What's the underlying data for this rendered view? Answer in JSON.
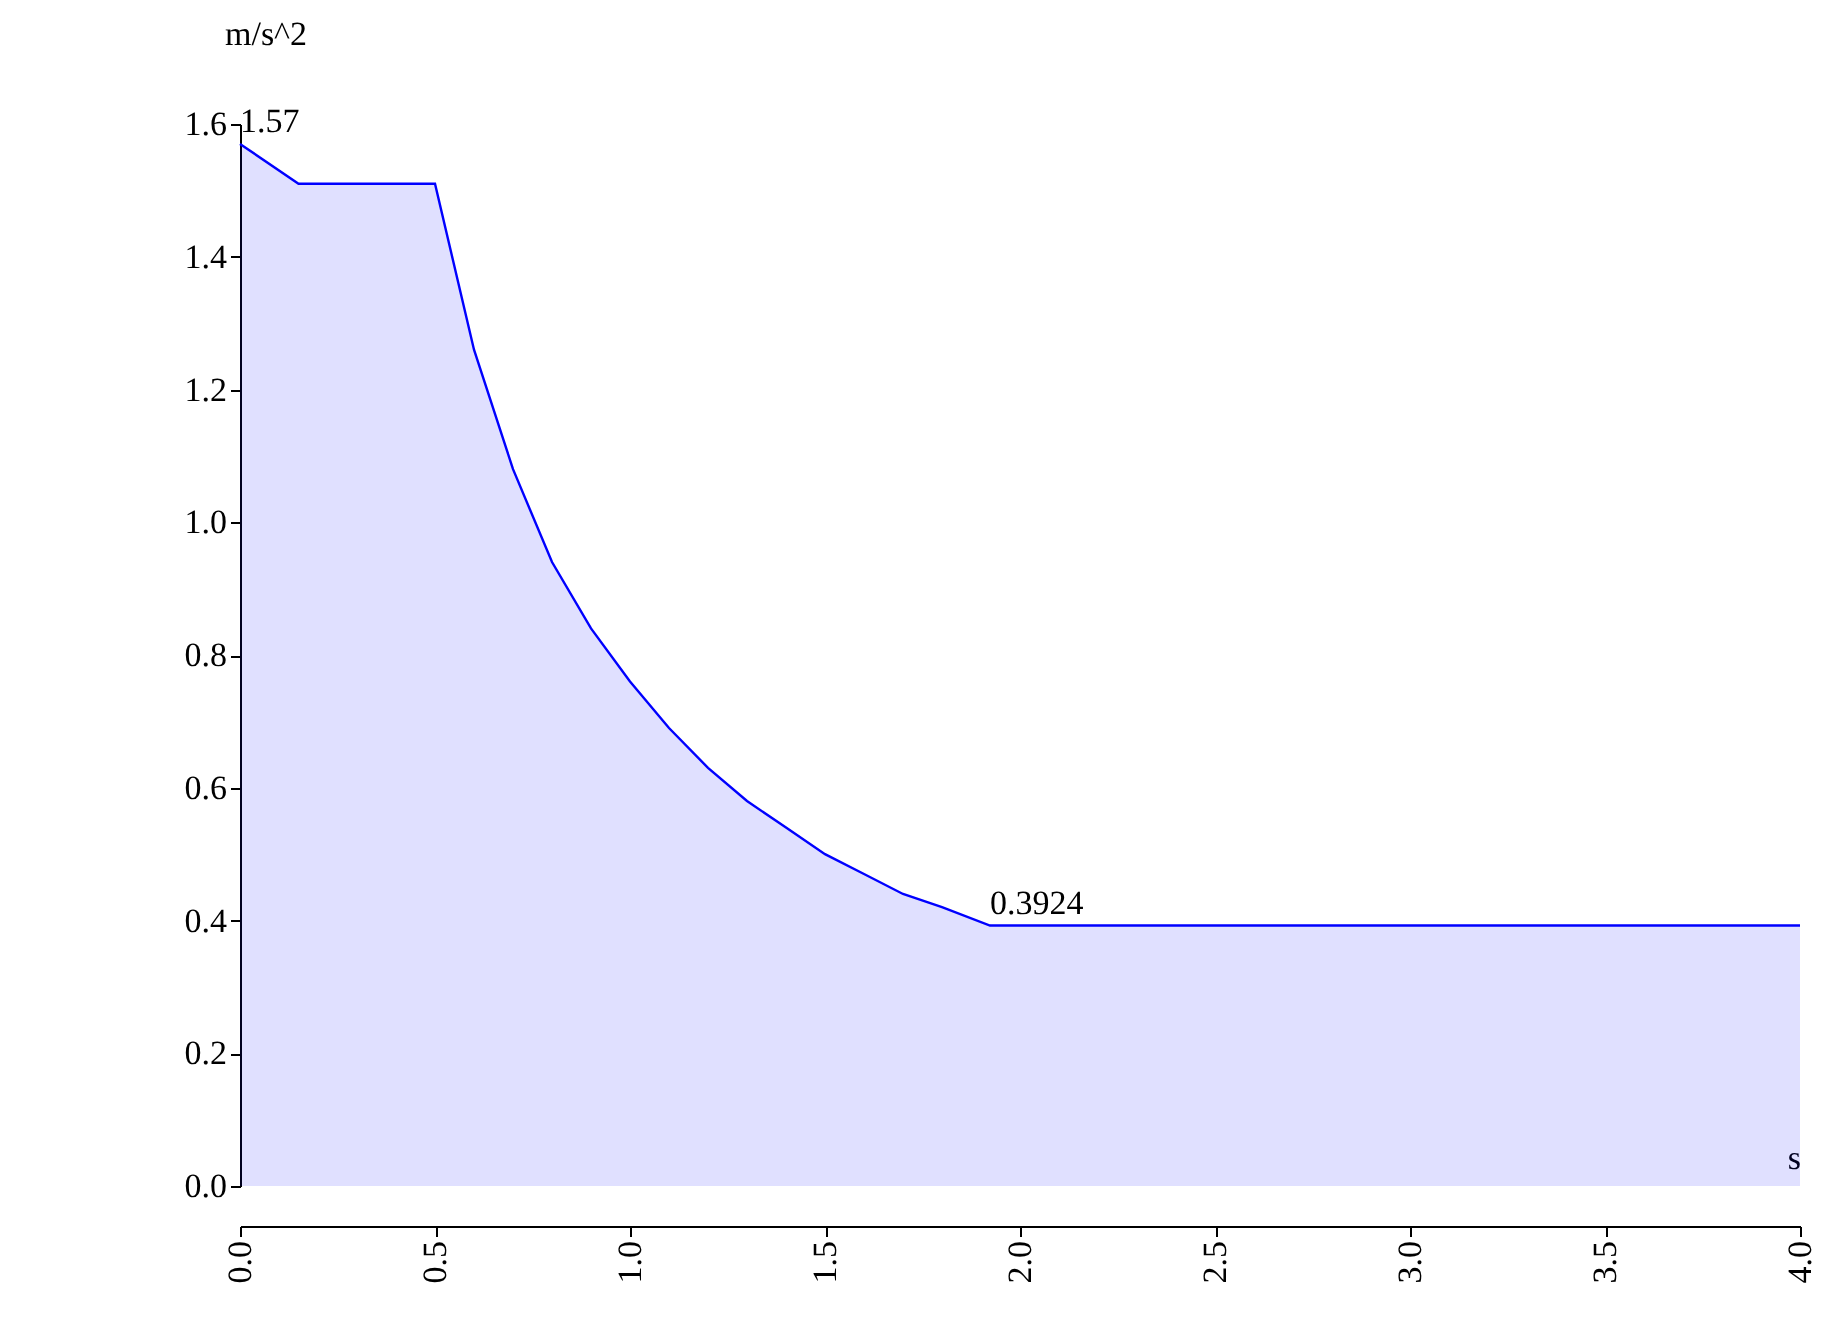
{
  "chart_data": {
    "type": "area",
    "ylabel": "m/s^2",
    "xlabel": "s",
    "x": [
      0,
      0.15,
      0.5,
      0.6,
      0.7,
      0.8,
      0.9,
      1.0,
      1.1,
      1.2,
      1.3,
      1.4,
      1.5,
      1.6,
      1.7,
      1.8,
      1.923,
      4.0
    ],
    "series": [
      {
        "color": "#0000ff",
        "values": [
          1.57,
          1.51,
          1.51,
          1.26,
          1.08,
          0.94,
          0.84,
          0.76,
          0.69,
          0.63,
          0.58,
          0.54,
          0.5,
          0.47,
          0.44,
          0.42,
          0.3924,
          0.3924
        ]
      }
    ],
    "xlim": [
      0,
      4
    ],
    "ylim": [
      0,
      1.6
    ],
    "xticks": [
      {
        "value": 0,
        "label": "0.0"
      },
      {
        "value": 0.5,
        "label": "0.5"
      },
      {
        "value": 1,
        "label": "1.0"
      },
      {
        "value": 1.5,
        "label": "1.5"
      },
      {
        "value": 2,
        "label": "2.0"
      },
      {
        "value": 2.5,
        "label": "2.5"
      },
      {
        "value": 3,
        "label": "3.0"
      },
      {
        "value": 3.5,
        "label": "3.5"
      },
      {
        "value": 4,
        "label": "4.0"
      }
    ],
    "yticks": [
      {
        "value": 0,
        "label": "0.0"
      },
      {
        "value": 0.2,
        "label": "0.2"
      },
      {
        "value": 0.4,
        "label": "0.4"
      },
      {
        "value": 0.6,
        "label": "0.6"
      },
      {
        "value": 0.8,
        "label": "0.8"
      },
      {
        "value": 1.0,
        "label": "1.0"
      },
      {
        "value": 1.2,
        "label": "1.2"
      },
      {
        "value": 1.4,
        "label": "1.4"
      },
      {
        "value": 1.6,
        "label": "1.6"
      }
    ],
    "annotations": [
      {
        "text": "1.57",
        "x": 0,
        "y": 1.57
      },
      {
        "text": "0.3924",
        "x": 1.923,
        "y": 0.3924
      }
    ],
    "grid": false
  }
}
